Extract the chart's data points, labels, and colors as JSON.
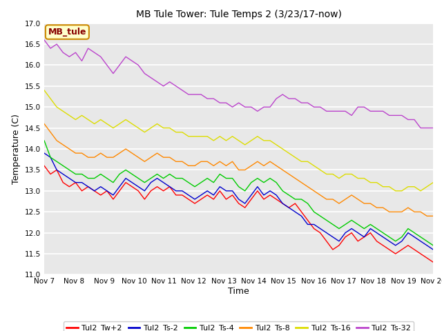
{
  "title": "MB Tule Tower: Tule Temps 2 (3/23/17-now)",
  "xlabel": "Time",
  "ylabel": "Temperature (C)",
  "ylim": [
    11.0,
    17.0
  ],
  "yticks": [
    11.0,
    11.5,
    12.0,
    12.5,
    13.0,
    13.5,
    14.0,
    14.5,
    15.0,
    15.5,
    16.0,
    16.5,
    17.0
  ],
  "xlim": [
    0,
    13
  ],
  "xtick_labels": [
    "Nov 7",
    "Nov 8",
    "Nov 9",
    "Nov 10",
    "Nov 11",
    "Nov 12",
    "Nov 13",
    "Nov 14",
    "Nov 15",
    "Nov 16",
    "Nov 17",
    "Nov 18",
    "Nov 19",
    "Nov 20"
  ],
  "xtick_positions": [
    0,
    1,
    2,
    3,
    4,
    5,
    6,
    7,
    8,
    9,
    10,
    11,
    12,
    13
  ],
  "legend_labels": [
    "Tul2_Tw+2",
    "Tul2_Ts-2",
    "Tul2_Ts-4",
    "Tul2_Ts-8",
    "Tul2_Ts-16",
    "Tul2_Ts-32"
  ],
  "line_colors": [
    "#ff0000",
    "#0000cc",
    "#00cc00",
    "#ff8800",
    "#dddd00",
    "#bb44cc"
  ],
  "inset_label": "MB_tule",
  "inset_bg": "#ffffcc",
  "inset_border": "#cc8800",
  "inset_text_color": "#880000",
  "fig_bg_color": "#ffffff",
  "axes_bg_color": "#e8e8e8",
  "grid_color": "#ffffff",
  "series_Tw2": [
    13.6,
    13.4,
    13.5,
    13.2,
    13.1,
    13.2,
    13.0,
    13.1,
    13.0,
    12.9,
    13.0,
    12.8,
    13.0,
    13.2,
    13.1,
    13.0,
    12.8,
    13.0,
    13.1,
    13.0,
    13.1,
    12.9,
    12.9,
    12.8,
    12.7,
    12.8,
    12.9,
    12.8,
    13.0,
    12.8,
    12.9,
    12.7,
    12.6,
    12.8,
    13.0,
    12.8,
    12.9,
    12.8,
    12.7,
    12.6,
    12.7,
    12.5,
    12.3,
    12.1,
    12.0,
    11.8,
    11.6,
    11.7,
    11.9,
    12.0,
    11.8,
    11.9,
    12.0,
    11.8,
    11.7,
    11.6,
    11.5,
    11.6,
    11.7,
    11.6,
    11.5,
    11.4,
    11.3
  ],
  "series_Ts2": [
    13.9,
    13.8,
    13.5,
    13.4,
    13.3,
    13.2,
    13.2,
    13.1,
    13.0,
    13.1,
    13.0,
    12.9,
    13.1,
    13.3,
    13.2,
    13.1,
    13.0,
    13.2,
    13.3,
    13.2,
    13.1,
    13.0,
    13.0,
    12.9,
    12.8,
    12.9,
    13.0,
    12.9,
    13.1,
    13.0,
    13.0,
    12.8,
    12.7,
    12.9,
    13.1,
    12.9,
    13.0,
    12.9,
    12.7,
    12.6,
    12.5,
    12.4,
    12.2,
    12.2,
    12.1,
    12.0,
    11.9,
    11.8,
    12.0,
    12.1,
    12.0,
    11.9,
    12.1,
    12.0,
    11.9,
    11.8,
    11.7,
    11.8,
    12.0,
    11.9,
    11.8,
    11.7,
    11.6
  ],
  "series_Ts4": [
    14.2,
    13.8,
    13.7,
    13.6,
    13.5,
    13.4,
    13.4,
    13.3,
    13.3,
    13.4,
    13.3,
    13.2,
    13.4,
    13.5,
    13.4,
    13.3,
    13.2,
    13.3,
    13.4,
    13.3,
    13.4,
    13.3,
    13.3,
    13.2,
    13.1,
    13.2,
    13.3,
    13.2,
    13.4,
    13.3,
    13.3,
    13.1,
    13.0,
    13.2,
    13.3,
    13.2,
    13.3,
    13.2,
    13.0,
    12.9,
    12.8,
    12.8,
    12.7,
    12.5,
    12.4,
    12.3,
    12.2,
    12.1,
    12.2,
    12.3,
    12.2,
    12.1,
    12.2,
    12.1,
    12.0,
    11.9,
    11.8,
    11.9,
    12.1,
    12.0,
    11.9,
    11.8,
    11.7
  ],
  "series_Ts8": [
    14.6,
    14.4,
    14.2,
    14.1,
    14.0,
    13.9,
    13.9,
    13.8,
    13.8,
    13.9,
    13.8,
    13.8,
    13.9,
    14.0,
    13.9,
    13.8,
    13.7,
    13.8,
    13.9,
    13.8,
    13.8,
    13.7,
    13.7,
    13.6,
    13.6,
    13.7,
    13.7,
    13.6,
    13.7,
    13.6,
    13.7,
    13.5,
    13.5,
    13.6,
    13.7,
    13.6,
    13.7,
    13.6,
    13.5,
    13.4,
    13.3,
    13.2,
    13.1,
    13.0,
    12.9,
    12.8,
    12.8,
    12.7,
    12.8,
    12.9,
    12.8,
    12.7,
    12.7,
    12.6,
    12.6,
    12.5,
    12.5,
    12.5,
    12.6,
    12.5,
    12.5,
    12.4,
    12.4
  ],
  "series_Ts16": [
    15.4,
    15.2,
    15.0,
    14.9,
    14.8,
    14.7,
    14.8,
    14.7,
    14.6,
    14.7,
    14.6,
    14.5,
    14.6,
    14.7,
    14.6,
    14.5,
    14.4,
    14.5,
    14.6,
    14.5,
    14.5,
    14.4,
    14.4,
    14.3,
    14.3,
    14.3,
    14.3,
    14.2,
    14.3,
    14.2,
    14.3,
    14.2,
    14.1,
    14.2,
    14.3,
    14.2,
    14.2,
    14.1,
    14.0,
    13.9,
    13.8,
    13.7,
    13.7,
    13.6,
    13.5,
    13.4,
    13.4,
    13.3,
    13.4,
    13.4,
    13.3,
    13.3,
    13.2,
    13.2,
    13.1,
    13.1,
    13.0,
    13.0,
    13.1,
    13.1,
    13.0,
    13.1,
    13.2
  ],
  "series_Ts32": [
    16.6,
    16.4,
    16.5,
    16.3,
    16.2,
    16.3,
    16.1,
    16.4,
    16.3,
    16.2,
    16.0,
    15.8,
    16.0,
    16.2,
    16.1,
    16.0,
    15.8,
    15.7,
    15.6,
    15.5,
    15.6,
    15.5,
    15.4,
    15.3,
    15.3,
    15.3,
    15.2,
    15.2,
    15.1,
    15.1,
    15.0,
    15.1,
    15.0,
    15.0,
    14.9,
    15.0,
    15.0,
    15.2,
    15.3,
    15.2,
    15.2,
    15.1,
    15.1,
    15.0,
    15.0,
    14.9,
    14.9,
    14.9,
    14.9,
    14.8,
    15.0,
    15.0,
    14.9,
    14.9,
    14.9,
    14.8,
    14.8,
    14.8,
    14.7,
    14.7,
    14.5,
    14.5,
    14.5
  ]
}
